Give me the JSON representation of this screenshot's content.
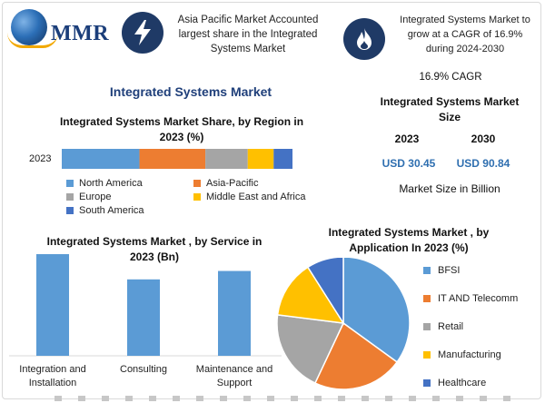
{
  "header": {
    "logo_text": "MMR",
    "headline_1": "Asia Pacific Market Accounted largest share in the Integrated Systems Market",
    "headline_2": "Integrated Systems Market to grow at a CAGR of 16.9% during 2024-2030",
    "cagr": "16.9% CAGR",
    "icon_1": "lightning-icon",
    "icon_2": "flame-icon"
  },
  "main_title": "Integrated Systems Market",
  "market_size": {
    "title": "Integrated Systems Market Size",
    "year_1": "2023",
    "year_2": "2030",
    "value_1": "USD 30.45",
    "value_2": "USD 90.84",
    "note": "Market Size in Billion"
  },
  "colors": {
    "north_america": "#5b9bd5",
    "asia_pacific": "#ed7d31",
    "europe": "#a5a5a5",
    "mea": "#ffc000",
    "south_america": "#4472c4",
    "header_icon_bg": "#1f3a66"
  },
  "chart_data": [
    {
      "type": "bar",
      "orientation": "horizontal-stacked",
      "title": "Integrated Systems Market Share, by Region in 2023 (%)",
      "categories": [
        "2023"
      ],
      "series": [
        {
          "name": "North America",
          "values": [
            33
          ]
        },
        {
          "name": "Asia-Pacific",
          "values": [
            28
          ]
        },
        {
          "name": "Europe",
          "values": [
            18
          ]
        },
        {
          "name": "Middle East and Africa",
          "values": [
            11
          ]
        },
        {
          "name": "South America",
          "values": [
            8
          ]
        }
      ],
      "legend": "bottom"
    },
    {
      "type": "bar",
      "title": "Integrated Systems Market , by Service in 2023 (Bn)",
      "categories": [
        "Integration and Installation",
        "Consulting",
        "Maintenance and Support"
      ],
      "values": [
        14.5,
        10.9,
        12.1
      ],
      "grid": false
    },
    {
      "type": "pie",
      "title": "Integrated Systems Market , by Application In 2023 (%)",
      "labels": [
        "BFSI",
        "IT AND Telecomm",
        "Retail",
        "Manufacturing",
        "Healthcare"
      ],
      "values": [
        35,
        22,
        20,
        14,
        9
      ],
      "legend": "right"
    }
  ]
}
